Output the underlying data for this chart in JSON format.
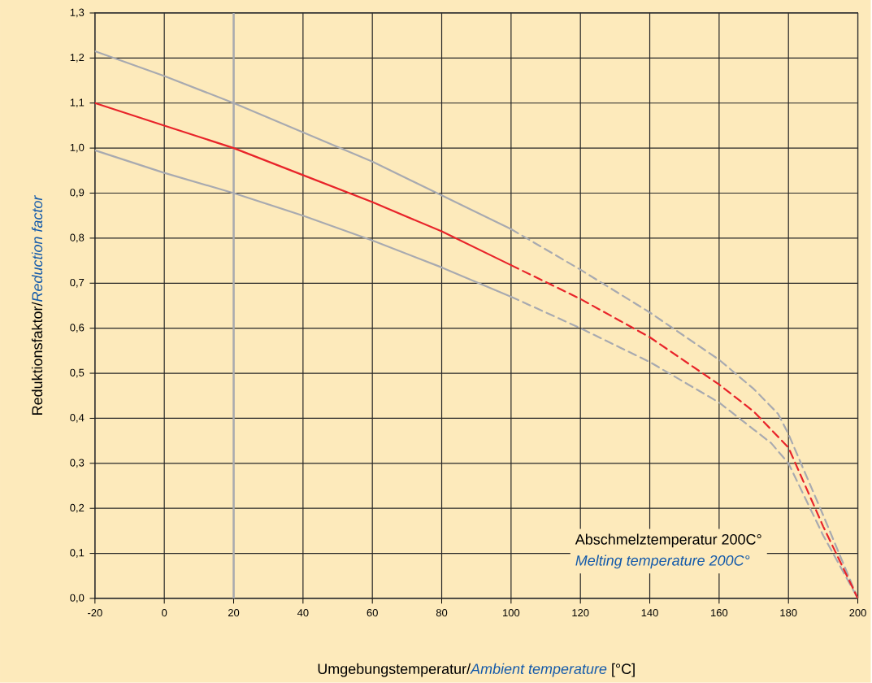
{
  "chart_data": {
    "type": "line",
    "xlabel": "Umgebungstemperatur/*Ambient temperature* [°C]",
    "ylabel": "Reduktionsfaktor/*Reduction factor*",
    "annotations": [
      "Abschmelztemperatur 200C°",
      "Melting temperature 200C°"
    ],
    "xlim": [
      -20,
      200
    ],
    "ylim": [
      0,
      1.3
    ],
    "xticks": [
      -20,
      0,
      20,
      40,
      60,
      80,
      100,
      120,
      140,
      160,
      180,
      200
    ],
    "yticks": [
      {
        "value": 0,
        "label": "0,0"
      },
      {
        "value": 0.1,
        "label": "0,1"
      },
      {
        "value": 0.2,
        "label": "0,2"
      },
      {
        "value": 0.3,
        "label": "0,3"
      },
      {
        "value": 0.4,
        "label": "0,4"
      },
      {
        "value": 0.5,
        "label": "0,5"
      },
      {
        "value": 0.6,
        "label": "0,6"
      },
      {
        "value": 0.7,
        "label": "0,7"
      },
      {
        "value": 0.8,
        "label": "0,8"
      },
      {
        "value": 0.9,
        "label": "0,9"
      },
      {
        "value": 1.0,
        "label": "1,0"
      },
      {
        "value": 1.1,
        "label": "1,1"
      },
      {
        "value": 1.2,
        "label": "1,2"
      },
      {
        "value": 1.3,
        "label": "1,3"
      }
    ],
    "grid": true,
    "ref_lines": [
      {
        "axis": "x",
        "value": 20,
        "color": "#a8aab0"
      }
    ],
    "series": [
      {
        "color": "#a8aab0",
        "line_style": "solid",
        "x": [
          -20,
          0,
          20,
          40,
          60,
          80,
          100
        ],
        "values": [
          1.215,
          1.16,
          1.1,
          1.035,
          0.97,
          0.895,
          0.82
        ]
      },
      {
        "color": "#a8aab0",
        "line_style": "dashed",
        "x": [
          100,
          120,
          140,
          160,
          170,
          177,
          180,
          190,
          200
        ],
        "values": [
          0.82,
          0.73,
          0.635,
          0.53,
          0.465,
          0.41,
          0.365,
          0.185,
          0.0
        ]
      },
      {
        "color": "#a8aab0",
        "line_style": "solid",
        "x": [
          -20,
          0,
          20,
          40,
          60,
          80,
          100
        ],
        "values": [
          0.995,
          0.945,
          0.9,
          0.85,
          0.795,
          0.735,
          0.67
        ]
      },
      {
        "color": "#a8aab0",
        "line_style": "dashed",
        "x": [
          100,
          120,
          140,
          160,
          170,
          175,
          180,
          190,
          200
        ],
        "values": [
          0.67,
          0.6,
          0.525,
          0.435,
          0.375,
          0.345,
          0.3,
          0.14,
          0.0
        ]
      },
      {
        "color": "#e8242a",
        "line_style": "solid",
        "x": [
          -20,
          0,
          20,
          40,
          60,
          80,
          100
        ],
        "values": [
          1.1,
          1.05,
          1.0,
          0.94,
          0.88,
          0.815,
          0.74
        ]
      },
      {
        "color": "#e8242a",
        "line_style": "dashed",
        "x": [
          100,
          120,
          140,
          160,
          170,
          175,
          180,
          190,
          200
        ],
        "values": [
          0.74,
          0.665,
          0.58,
          0.475,
          0.415,
          0.375,
          0.335,
          0.16,
          0.0
        ]
      }
    ]
  }
}
